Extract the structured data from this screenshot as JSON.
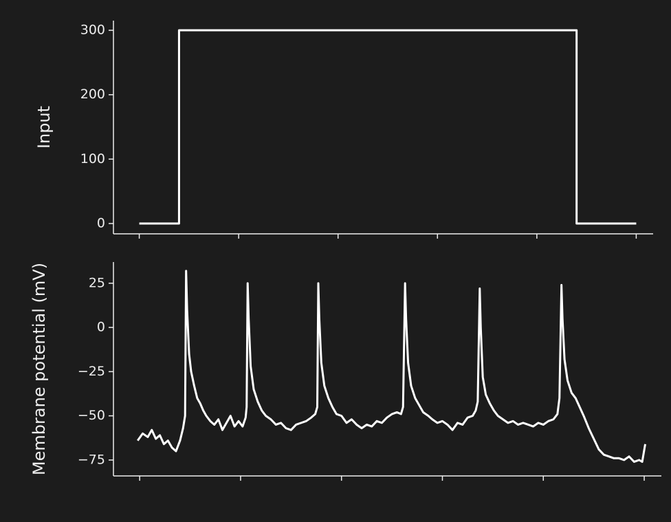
{
  "chart_data": [
    {
      "type": "line",
      "ylabel": "Input",
      "x": [
        0,
        40,
        40,
        440,
        440,
        500
      ],
      "series": [
        {
          "color": "#ffffff",
          "values": [
            0,
            0,
            300,
            300,
            0,
            0
          ]
        }
      ],
      "xlim": [
        -26,
        517
      ],
      "xticks": [
        0,
        100,
        200,
        300,
        400,
        500
      ],
      "ylim": [
        -16,
        315
      ],
      "yticks": [
        0,
        100,
        200,
        300
      ]
    },
    {
      "type": "line",
      "ylabel": "Membrane potential (mV)",
      "x": [
        -2,
        3,
        8,
        12,
        16,
        20,
        24,
        28,
        32,
        36,
        40,
        43,
        45,
        46,
        47,
        49,
        51,
        54,
        57,
        60,
        63,
        66,
        70,
        74,
        78,
        82,
        86,
        90,
        94,
        98,
        102,
        105,
        106,
        107,
        108,
        110,
        113,
        117,
        121,
        125,
        130,
        135,
        140,
        145,
        150,
        155,
        160,
        165,
        170,
        174,
        176,
        177,
        178,
        180,
        183,
        187,
        191,
        195,
        200,
        205,
        210,
        215,
        220,
        225,
        230,
        235,
        240,
        245,
        250,
        255,
        259,
        261,
        263,
        264,
        266,
        269,
        273,
        277,
        281,
        286,
        290,
        295,
        300,
        305,
        310,
        315,
        320,
        325,
        330,
        333,
        335,
        337,
        338,
        340,
        343,
        347,
        351,
        355,
        360,
        365,
        370,
        375,
        380,
        385,
        390,
        395,
        400,
        405,
        410,
        414,
        416,
        418,
        419,
        421,
        424,
        428,
        432,
        436,
        440,
        445,
        450,
        455,
        460,
        465,
        470,
        475,
        480,
        485,
        490,
        495,
        498,
        501
      ],
      "series": [
        {
          "color": "#ffffff",
          "values": [
            -64,
            -60,
            -62,
            -58,
            -63,
            -61,
            -66,
            -64,
            -68,
            -70,
            -64,
            -57,
            -50,
            32,
            10,
            -15,
            -25,
            -33,
            -40,
            -43,
            -47,
            -50,
            -53,
            -55,
            -52,
            -58,
            -54,
            -50,
            -56,
            -53,
            -56,
            -51,
            -45,
            25,
            5,
            -22,
            -35,
            -42,
            -47,
            -50,
            -52,
            -55,
            -54,
            -57,
            -58,
            -55,
            -54,
            -53,
            -51,
            -49,
            -45,
            25,
            5,
            -20,
            -33,
            -40,
            -45,
            -49,
            -50,
            -54,
            -52,
            -55,
            -57,
            -55,
            -56,
            -53,
            -54,
            -51,
            -49,
            -48,
            -49,
            -45,
            25,
            5,
            -20,
            -33,
            -40,
            -44,
            -48,
            -50,
            -52,
            -54,
            -53,
            -55,
            -58,
            -54,
            -55,
            -51,
            -50,
            -47,
            -42,
            22,
            0,
            -28,
            -38,
            -43,
            -47,
            -50,
            -52,
            -54,
            -53,
            -55,
            -54,
            -55,
            -56,
            -54,
            -55,
            -53,
            -52,
            -49,
            -40,
            24,
            5,
            -18,
            -30,
            -37,
            -40,
            -45,
            -50,
            -57,
            -63,
            -69,
            -72,
            -73,
            -74,
            -74,
            -75,
            -73,
            -76,
            -75,
            -76,
            -66
          ]
        }
      ],
      "xlim": [
        -26,
        517
      ],
      "xticks": [
        0,
        100,
        200,
        300,
        400,
        500
      ],
      "ylim": [
        -84,
        37
      ],
      "yticks": [
        25,
        0,
        {
          "value": -25,
          "label": "−25"
        },
        {
          "value": -50,
          "label": "−50"
        },
        {
          "value": -75,
          "label": "−75"
        }
      ]
    }
  ]
}
